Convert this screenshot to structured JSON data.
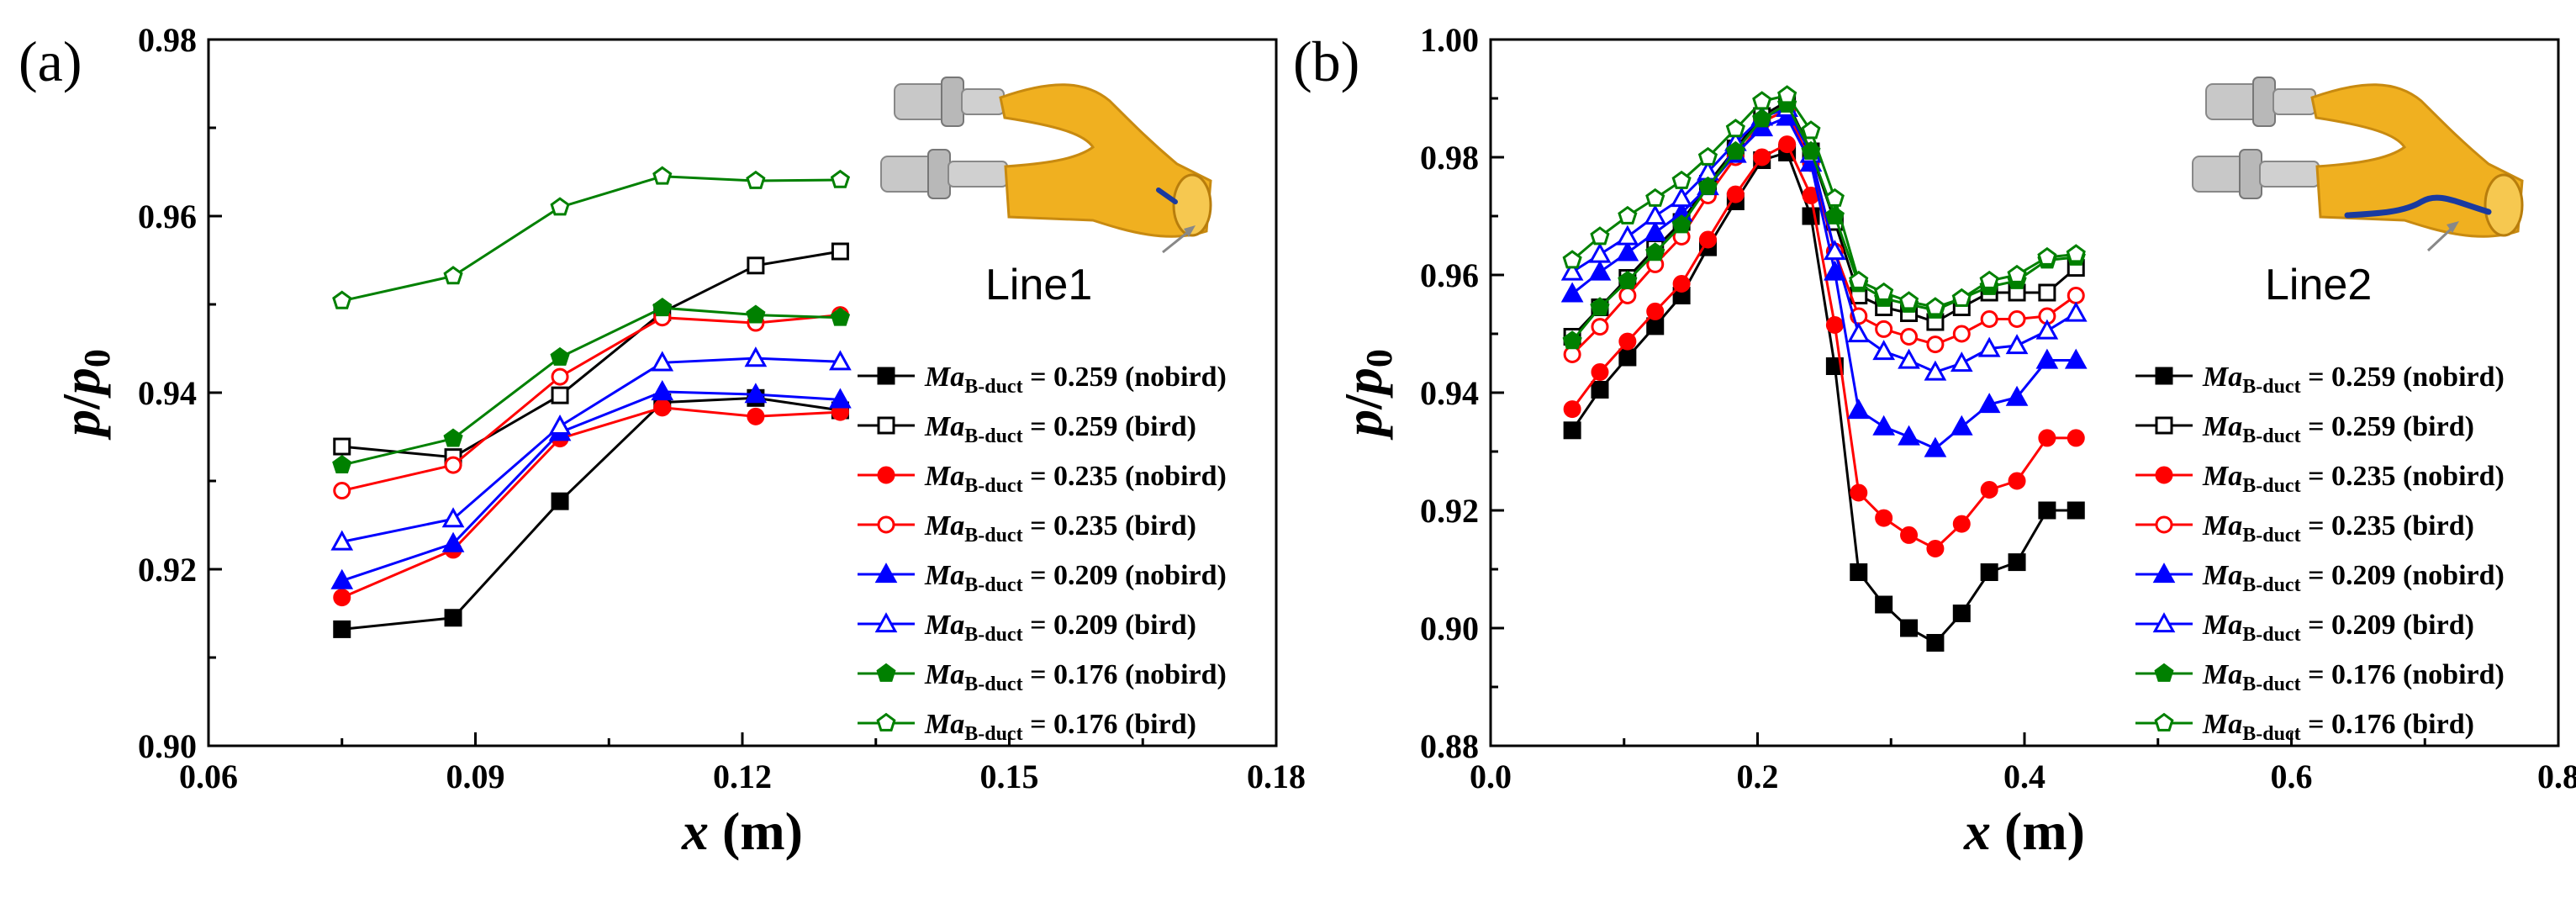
{
  "chart_data": [
    {
      "type": "line",
      "panel_label": "(a)",
      "xlabel": "x (m)",
      "ylabel": "p/p0",
      "xlim": [
        0.06,
        0.18
      ],
      "ylim": [
        0.9,
        0.98
      ],
      "xticks": [
        "0.06",
        "0.09",
        "0.12",
        "0.15",
        "0.18"
      ],
      "yticks": [
        "0.90",
        "0.92",
        "0.94",
        "0.96",
        "0.98"
      ],
      "x": [
        0.075,
        0.0875,
        0.0995,
        0.111,
        0.1215,
        0.131
      ],
      "inset_label": "Line1",
      "legend_position": "right",
      "series": [
        {
          "name": "Ma_B-duct = 0.259 (nobird)",
          "label_main": "Ma",
          "label_sub": "B-duct",
          "label_rest": " = 0.259 (nobird)",
          "color": "#000000",
          "marker": "square",
          "filled": true,
          "values": [
            0.9132,
            0.9145,
            0.9277,
            0.9389,
            0.9394,
            0.938
          ]
        },
        {
          "name": "Ma_B-duct = 0.259 (bird)",
          "label_main": "Ma",
          "label_sub": "B-duct",
          "label_rest": " = 0.259 (bird)",
          "color": "#000000",
          "marker": "square",
          "filled": false,
          "values": [
            0.9339,
            0.9327,
            0.9397,
            0.9491,
            0.9544,
            0.956
          ]
        },
        {
          "name": "Ma_B-duct = 0.235 (nobird)",
          "label_main": "Ma",
          "label_sub": "B-duct",
          "label_rest": " = 0.235 (nobird)",
          "color": "#ff0000",
          "marker": "circle",
          "filled": true,
          "values": [
            0.9168,
            0.9222,
            0.9348,
            0.9383,
            0.9373,
            0.9378
          ]
        },
        {
          "name": "Ma_B-duct = 0.235 (bird)",
          "label_main": "Ma",
          "label_sub": "B-duct",
          "label_rest": " = 0.235 (bird)",
          "color": "#ff0000",
          "marker": "circle",
          "filled": false,
          "values": [
            0.9289,
            0.9318,
            0.9418,
            0.9485,
            0.9479,
            0.9488
          ]
        },
        {
          "name": "Ma_B-duct = 0.209 (nobird)",
          "label_main": "Ma",
          "label_sub": "B-duct",
          "label_rest": " = 0.209 (nobird)",
          "color": "#0000ff",
          "marker": "triangle",
          "filled": true,
          "values": [
            0.9187,
            0.9229,
            0.9355,
            0.9401,
            0.9398,
            0.9392
          ]
        },
        {
          "name": "Ma_B-duct = 0.209 (bird)",
          "label_main": "Ma",
          "label_sub": "B-duct",
          "label_rest": " = 0.209 (bird)",
          "color": "#0000ff",
          "marker": "triangle",
          "filled": false,
          "values": [
            0.9231,
            0.9257,
            0.9362,
            0.9434,
            0.9439,
            0.9435
          ]
        },
        {
          "name": "Ma_B-duct = 0.176 (nobird)",
          "label_main": "Ma",
          "label_sub": "B-duct",
          "label_rest": " = 0.176 (nobird)",
          "color": "#008000",
          "marker": "pentagon",
          "filled": true,
          "values": [
            0.9318,
            0.9348,
            0.944,
            0.9496,
            0.9488,
            0.9485
          ]
        },
        {
          "name": "Ma_B-duct = 0.176 (bird)",
          "label_main": "Ma",
          "label_sub": "B-duct",
          "label_rest": " = 0.176 (bird)",
          "color": "#008000",
          "marker": "pentagon",
          "filled": false,
          "values": [
            0.9504,
            0.9532,
            0.961,
            0.9645,
            0.964,
            0.9641
          ]
        }
      ]
    },
    {
      "type": "line",
      "panel_label": "(b)",
      "xlabel": "x (m)",
      "ylabel": "p/p0",
      "xlim": [
        0.0,
        0.85
      ],
      "ylim": [
        0.88,
        1.0
      ],
      "xticks": [
        "0.0",
        "0.2",
        "0.4",
        "0.6",
        "0.8"
      ],
      "yticks": [
        "0.88",
        "0.90",
        "0.92",
        "0.94",
        "0.96",
        "0.98",
        "1.00"
      ],
      "x": [
        0.065,
        0.087,
        0.109,
        0.131,
        0.152,
        0.173,
        0.195,
        0.216,
        0.236,
        0.255,
        0.274,
        0.293,
        0.313,
        0.333,
        0.354,
        0.375,
        0.397,
        0.419,
        0.443,
        0.466
      ],
      "inset_label": "Line2",
      "legend_position": "right",
      "series": [
        {
          "name": "Ma_B-duct = 0.259 (nobird)",
          "label_main": "Ma",
          "label_sub": "B-duct",
          "label_rest": " = 0.259 (nobird)",
          "color": "#000000",
          "marker": "square",
          "filled": true,
          "values": [
            0.9336,
            0.9405,
            0.946,
            0.9513,
            0.9565,
            0.9647,
            0.9725,
            0.9795,
            0.9808,
            0.97,
            0.9445,
            0.9095,
            0.904,
            0.9,
            0.8975,
            0.9025,
            0.9095,
            0.9112,
            0.92,
            0.92
          ]
        },
        {
          "name": "Ma_B-duct = 0.259 (bird)",
          "label_main": "Ma",
          "label_sub": "B-duct",
          "label_rest": " = 0.259 (bird)",
          "color": "#000000",
          "marker": "square",
          "filled": false,
          "values": [
            0.9495,
            0.9545,
            0.9595,
            0.9645,
            0.969,
            0.9755,
            0.9815,
            0.987,
            0.9895,
            0.981,
            0.969,
            0.9565,
            0.9545,
            0.9535,
            0.952,
            0.9545,
            0.957,
            0.957,
            0.957,
            0.9612
          ]
        },
        {
          "name": "Ma_B-duct = 0.235 (nobird)",
          "label_main": "Ma",
          "label_sub": "B-duct",
          "label_rest": " = 0.235 (nobird)",
          "color": "#ff0000",
          "marker": "circle",
          "filled": true,
          "values": [
            0.9372,
            0.9435,
            0.9487,
            0.9538,
            0.9585,
            0.966,
            0.9737,
            0.98,
            0.9822,
            0.9735,
            0.9515,
            0.923,
            0.9187,
            0.9158,
            0.9135,
            0.9177,
            0.9235,
            0.925,
            0.9323,
            0.9323
          ]
        },
        {
          "name": "Ma_B-duct = 0.235 (bird)",
          "label_main": "Ma",
          "label_sub": "B-duct",
          "label_rest": " = 0.235 (bird)",
          "color": "#ff0000",
          "marker": "circle",
          "filled": false,
          "values": [
            0.9465,
            0.9512,
            0.9565,
            0.9618,
            0.9665,
            0.9735,
            0.98,
            0.986,
            0.988,
            0.979,
            0.964,
            0.953,
            0.9508,
            0.9495,
            0.9482,
            0.95,
            0.9525,
            0.9525,
            0.953,
            0.9565
          ]
        },
        {
          "name": "Ma_B-duct = 0.209 (nobird)",
          "label_main": "Ma",
          "label_sub": "B-duct",
          "label_rest": " = 0.209 (nobird)",
          "color": "#0000ff",
          "marker": "triangle",
          "filled": true,
          "values": [
            0.9568,
            0.9605,
            0.9638,
            0.9672,
            0.9705,
            0.975,
            0.9805,
            0.985,
            0.9868,
            0.979,
            0.9605,
            0.937,
            0.9342,
            0.9325,
            0.9305,
            0.9342,
            0.938,
            0.9392,
            0.9455,
            0.9455
          ]
        },
        {
          "name": "Ma_B-duct = 0.209 (bird)",
          "label_main": "Ma",
          "label_sub": "B-duct",
          "label_rest": " = 0.209 (bird)",
          "color": "#0000ff",
          "marker": "triangle",
          "filled": false,
          "values": [
            0.9605,
            0.9635,
            0.9665,
            0.97,
            0.973,
            0.9775,
            0.9825,
            0.9868,
            0.9883,
            0.9805,
            0.964,
            0.95,
            0.947,
            0.9455,
            0.9435,
            0.945,
            0.9475,
            0.948,
            0.9505,
            0.9535
          ]
        },
        {
          "name": "Ma_B-duct = 0.176 (nobird)",
          "label_main": "Ma",
          "label_sub": "B-duct",
          "label_rest": " = 0.176 (nobird)",
          "color": "#008000",
          "marker": "pentagon",
          "filled": true,
          "values": [
            0.9488,
            0.9545,
            0.959,
            0.9638,
            0.9685,
            0.975,
            0.981,
            0.9865,
            0.989,
            0.981,
            0.97,
            0.9585,
            0.956,
            0.955,
            0.954,
            0.956,
            0.958,
            0.959,
            0.9625,
            0.963
          ]
        },
        {
          "name": "Ma_B-duct = 0.176 (bird)",
          "label_main": "Ma",
          "label_sub": "B-duct",
          "label_rest": " = 0.176 (bird)",
          "color": "#008000",
          "marker": "pentagon",
          "filled": false,
          "values": [
            0.9625,
            0.9665,
            0.97,
            0.973,
            0.976,
            0.98,
            0.9848,
            0.9895,
            0.9905,
            0.9845,
            0.973,
            0.959,
            0.957,
            0.9555,
            0.9545,
            0.956,
            0.959,
            0.96,
            0.963,
            0.9635
          ]
        }
      ]
    }
  ]
}
